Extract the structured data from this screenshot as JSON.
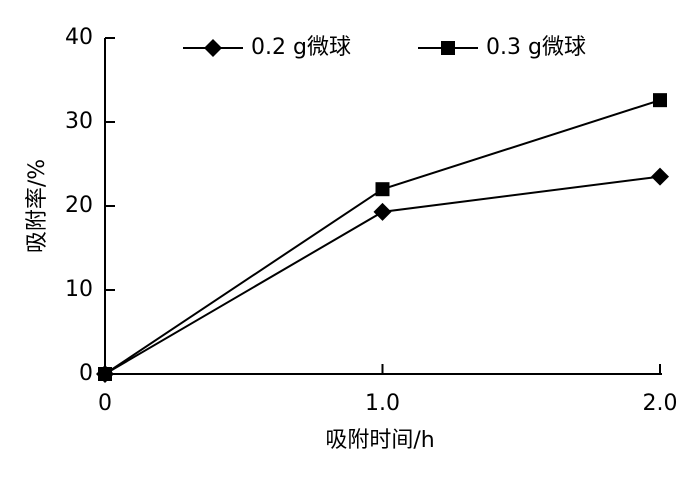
{
  "chart_data": {
    "type": "line",
    "x": [
      0,
      1,
      2
    ],
    "xlim": [
      0,
      2
    ],
    "xticks": [
      0,
      {
        "value": 1,
        "label": "1.0"
      },
      {
        "value": 2,
        "label": "2.0"
      }
    ],
    "ylim": [
      0,
      40
    ],
    "yticks": [
      0,
      10,
      20,
      30,
      40
    ],
    "xlabel": "吸附时间/h",
    "ylabel": "吸附率/%",
    "legend": "top",
    "series": [
      {
        "name": "0.2 g微球",
        "color": "#000000",
        "marker": "diamond",
        "values": [
          0,
          19.3,
          23.5
        ]
      },
      {
        "name": "0.3 g微球",
        "color": "#000000",
        "marker": "square",
        "values": [
          0,
          22.0,
          32.6
        ]
      }
    ]
  }
}
